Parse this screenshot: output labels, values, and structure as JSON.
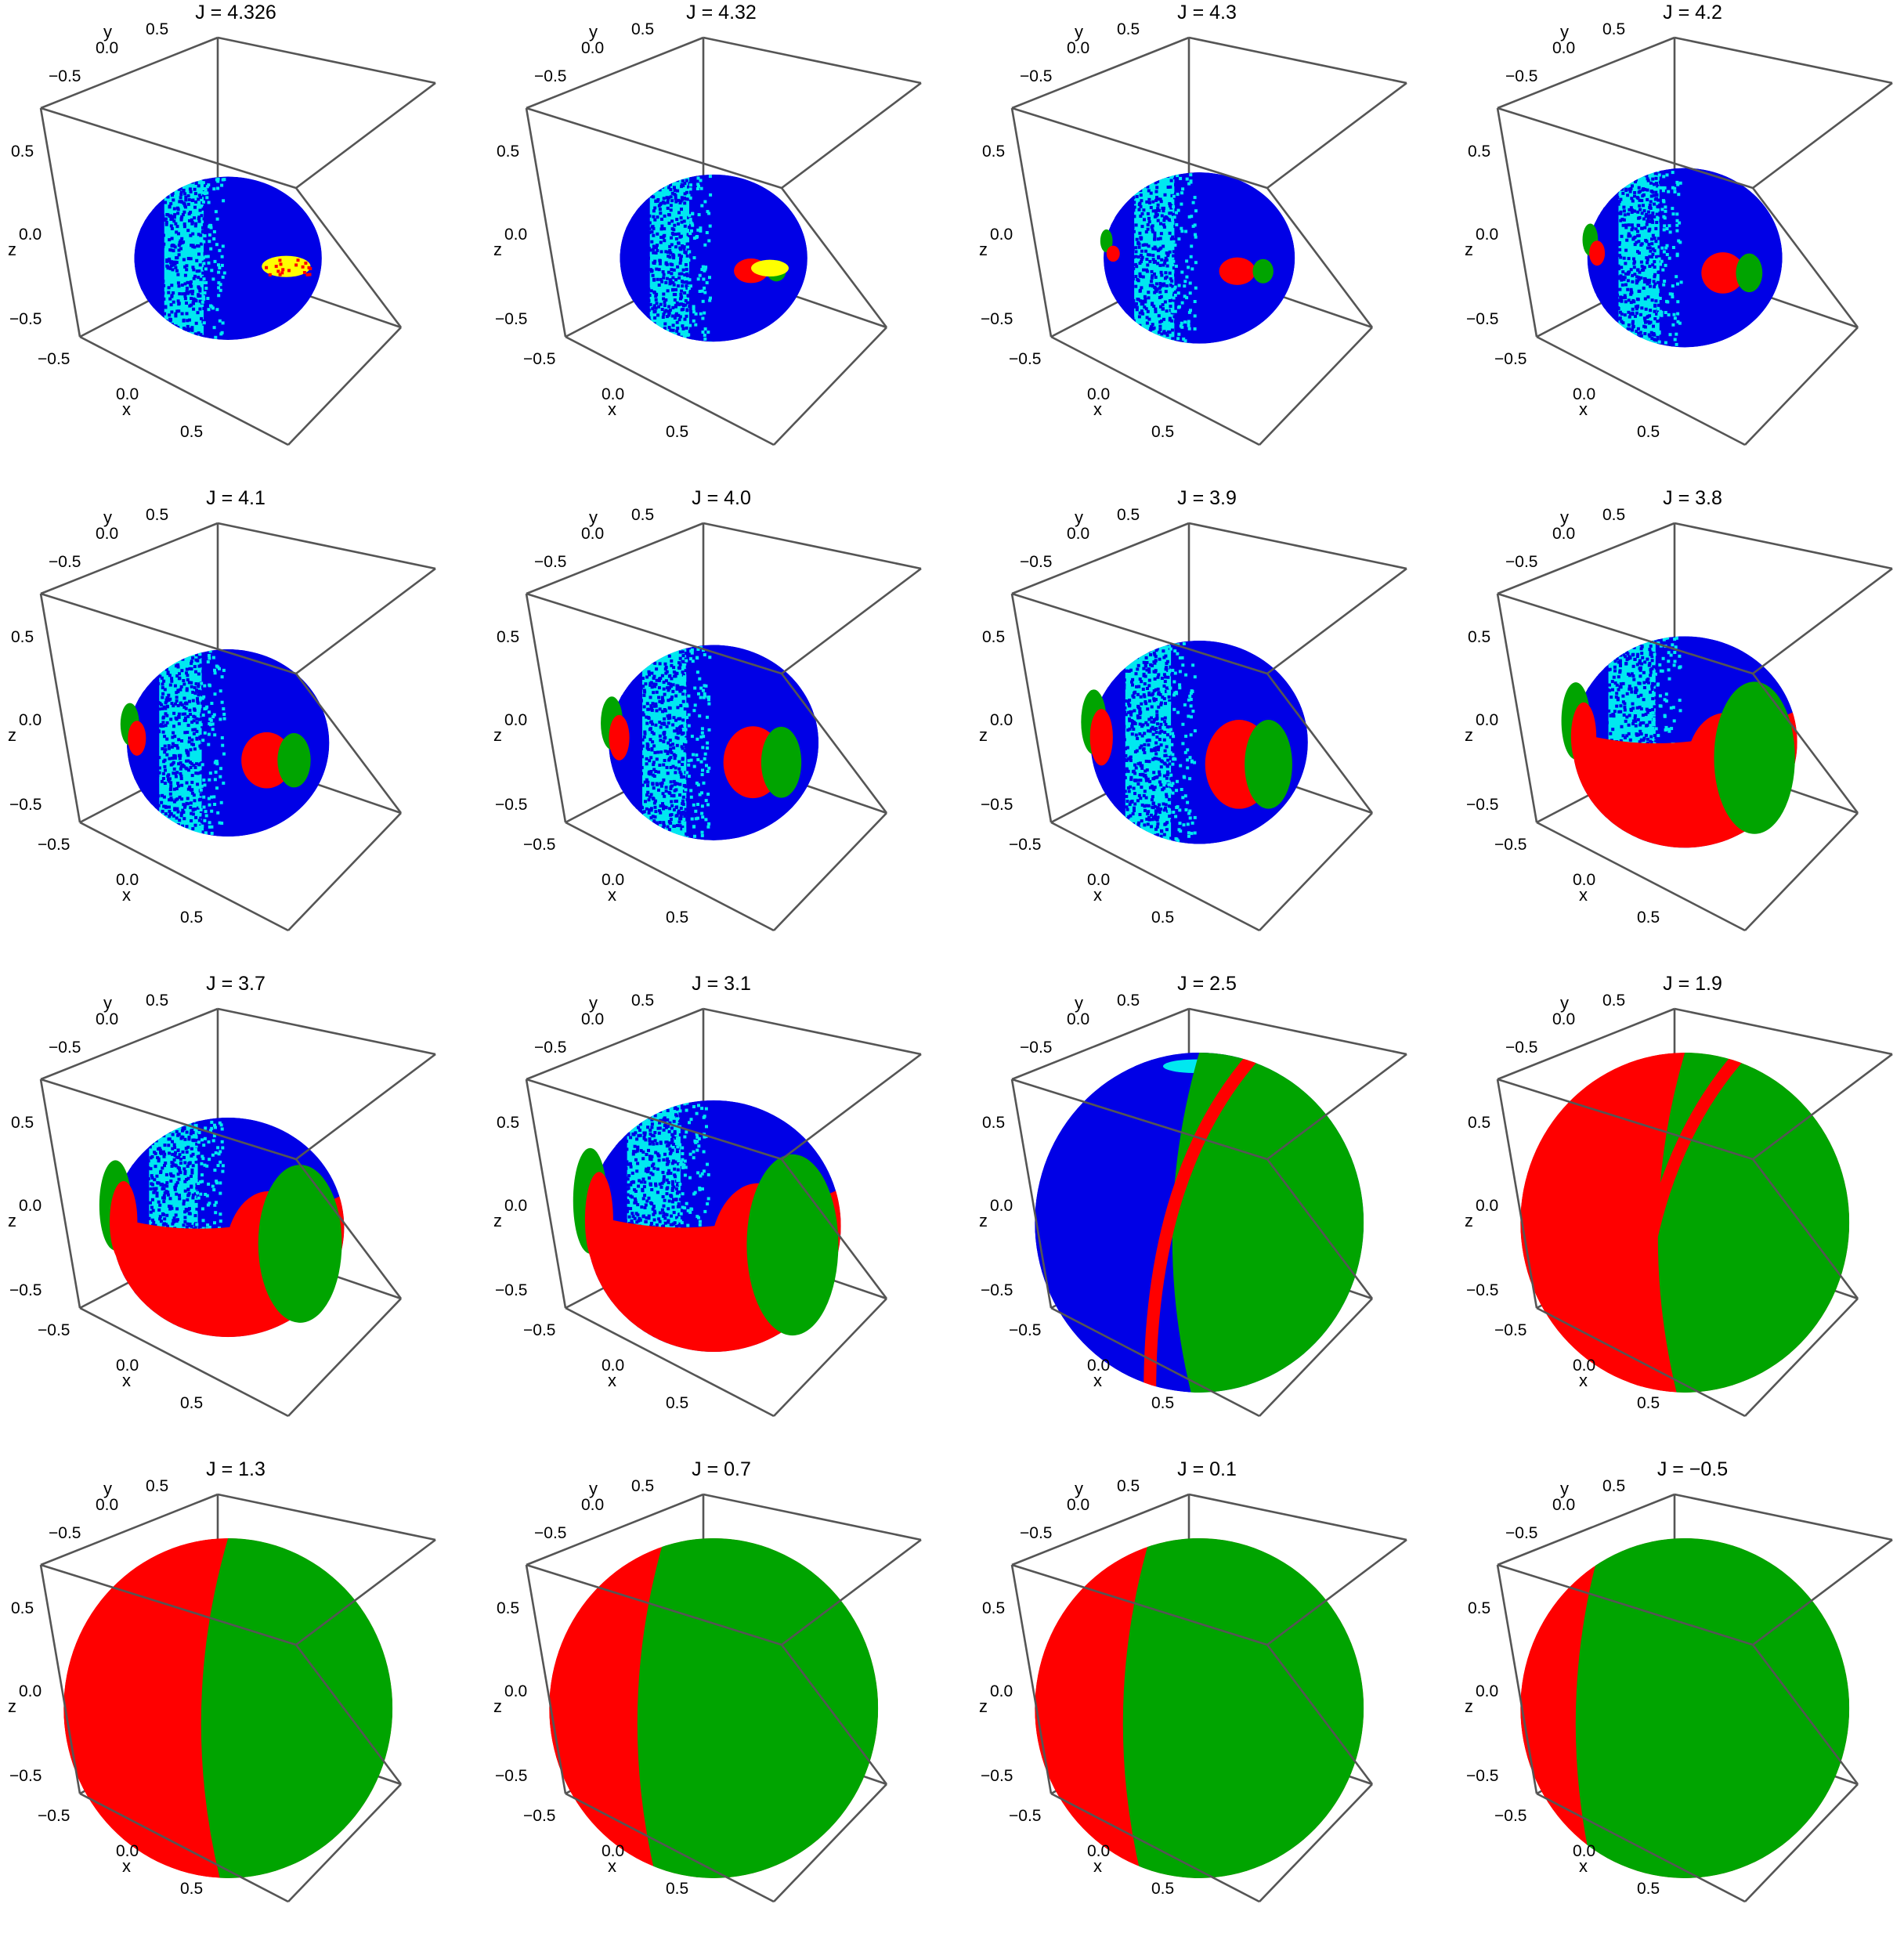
{
  "figure": {
    "panel_title_prefix": "J = ",
    "axis_labels": {
      "x": "x",
      "y": "y",
      "z": "z"
    },
    "colors": {
      "blue": "#0000e6",
      "cyan": "#00e8f0",
      "red": "#ff0000",
      "green": "#00a400",
      "yellow": "#ffff00",
      "frame": "#555555"
    }
  },
  "chart_data": [
    {
      "type": "scatter",
      "title": "J = 4.326",
      "J": 4.326,
      "xlabel": "x",
      "ylabel": "y",
      "zlabel": "z",
      "xticks": [
        "−0.5",
        "0.0",
        "0.5"
      ],
      "yticks": [
        "−0.5",
        "0.0",
        "0.5"
      ],
      "zticks": [
        "−0.5",
        "0.0",
        "0.5"
      ],
      "xlim": [
        -0.8,
        0.8
      ],
      "ylim": [
        -0.8,
        0.8
      ],
      "zlim": [
        -0.8,
        0.8
      ],
      "shape": "ellipsoid",
      "radii": [
        0.62,
        0.42,
        0.36
      ],
      "regions_visible": [
        "blue",
        "cyan",
        "yellow",
        "red"
      ]
    },
    {
      "type": "scatter",
      "title": "J = 4.32",
      "J": 4.32,
      "xlabel": "x",
      "ylabel": "y",
      "zlabel": "z",
      "xticks": [
        "−0.5",
        "0.0",
        "0.5"
      ],
      "yticks": [
        "−0.5",
        "0.0",
        "0.5"
      ],
      "zticks": [
        "−0.5",
        "0.0",
        "0.5"
      ],
      "xlim": [
        -0.8,
        0.8
      ],
      "ylim": [
        -0.8,
        0.8
      ],
      "zlim": [
        -0.8,
        0.8
      ],
      "shape": "ellipsoid",
      "radii": [
        0.64,
        0.42,
        0.37
      ],
      "regions_visible": [
        "blue",
        "cyan",
        "red",
        "yellow",
        "green"
      ]
    },
    {
      "type": "scatter",
      "title": "J = 4.3",
      "J": 4.3,
      "xlabel": "x",
      "ylabel": "y",
      "zlabel": "z",
      "xticks": [
        "−0.5",
        "0.0",
        "0.5"
      ],
      "yticks": [
        "−0.5",
        "0.0",
        "0.5"
      ],
      "zticks": [
        "−0.5",
        "0.0",
        "0.5"
      ],
      "xlim": [
        -0.8,
        0.8
      ],
      "ylim": [
        -0.8,
        0.8
      ],
      "zlim": [
        -0.8,
        0.8
      ],
      "shape": "ellipsoid",
      "radii": [
        0.66,
        0.43,
        0.38
      ],
      "regions_visible": [
        "blue",
        "cyan",
        "red",
        "green"
      ]
    },
    {
      "type": "scatter",
      "title": "J = 4.2",
      "J": 4.2,
      "xlabel": "x",
      "ylabel": "y",
      "zlabel": "z",
      "xticks": [
        "−0.5",
        "0.0",
        "0.5"
      ],
      "yticks": [
        "−0.5",
        "0.0",
        "0.5"
      ],
      "zticks": [
        "−0.5",
        "0.0",
        "0.5"
      ],
      "xlim": [
        -0.8,
        0.8
      ],
      "ylim": [
        -0.8,
        0.8
      ],
      "zlim": [
        -0.8,
        0.8
      ],
      "shape": "ellipsoid",
      "radii": [
        0.7,
        0.44,
        0.4
      ],
      "regions_visible": [
        "blue",
        "cyan",
        "red",
        "green"
      ]
    },
    {
      "type": "scatter",
      "title": "J = 4.1",
      "J": 4.1,
      "xlabel": "x",
      "ylabel": "y",
      "zlabel": "z",
      "xticks": [
        "−0.5",
        "0.0",
        "0.5"
      ],
      "yticks": [
        "−0.5",
        "0.0",
        "0.5"
      ],
      "zticks": [
        "−0.5",
        "0.0",
        "0.5"
      ],
      "xlim": [
        -0.8,
        0.8
      ],
      "ylim": [
        -0.8,
        0.8
      ],
      "zlim": [
        -0.8,
        0.8
      ],
      "shape": "ellipsoid",
      "radii": [
        0.72,
        0.46,
        0.42
      ],
      "regions_visible": [
        "blue",
        "cyan",
        "red",
        "green"
      ]
    },
    {
      "type": "scatter",
      "title": "J = 4.0",
      "J": 4.0,
      "xlabel": "x",
      "ylabel": "y",
      "zlabel": "z",
      "xticks": [
        "−0.5",
        "0.0",
        "0.5"
      ],
      "yticks": [
        "−0.5",
        "0.0",
        "0.5"
      ],
      "zticks": [
        "−0.5",
        "0.0",
        "0.5"
      ],
      "xlim": [
        -0.8,
        0.8
      ],
      "ylim": [
        -0.8,
        0.8
      ],
      "zlim": [
        -0.8,
        0.8
      ],
      "shape": "ellipsoid",
      "radii": [
        0.74,
        0.48,
        0.44
      ],
      "regions_visible": [
        "blue",
        "cyan",
        "red",
        "green"
      ]
    },
    {
      "type": "scatter",
      "title": "J = 3.9",
      "J": 3.9,
      "xlabel": "x",
      "ylabel": "y",
      "zlabel": "z",
      "xticks": [
        "−0.5",
        "0.0",
        "0.5"
      ],
      "yticks": [
        "−0.5",
        "0.0",
        "0.5"
      ],
      "zticks": [
        "−0.5",
        "0.0",
        "0.5"
      ],
      "xlim": [
        -0.8,
        0.8
      ],
      "ylim": [
        -0.8,
        0.8
      ],
      "zlim": [
        -0.8,
        0.8
      ],
      "shape": "ellipsoid",
      "radii": [
        0.76,
        0.5,
        0.46
      ],
      "regions_visible": [
        "blue",
        "cyan",
        "red",
        "green"
      ]
    },
    {
      "type": "scatter",
      "title": "J = 3.8",
      "J": 3.8,
      "xlabel": "x",
      "ylabel": "y",
      "zlabel": "z",
      "xticks": [
        "−0.5",
        "0.0",
        "0.5"
      ],
      "yticks": [
        "−0.5",
        "0.0",
        "0.5"
      ],
      "zticks": [
        "−0.5",
        "0.0",
        "0.5"
      ],
      "xlim": [
        -0.8,
        0.8
      ],
      "ylim": [
        -0.8,
        0.8
      ],
      "zlim": [
        -0.8,
        0.8
      ],
      "shape": "ellipsoid",
      "radii": [
        0.77,
        0.52,
        0.48
      ],
      "regions_visible": [
        "blue",
        "cyan",
        "red",
        "green"
      ]
    },
    {
      "type": "scatter",
      "title": "J = 3.7",
      "J": 3.7,
      "xlabel": "x",
      "ylabel": "y",
      "zlabel": "z",
      "xticks": [
        "−0.5",
        "0.0",
        "0.5"
      ],
      "yticks": [
        "−0.5",
        "0.0",
        "0.5"
      ],
      "zticks": [
        "−0.5",
        "0.0",
        "0.5"
      ],
      "xlim": [
        -0.8,
        0.8
      ],
      "ylim": [
        -0.8,
        0.8
      ],
      "zlim": [
        -0.8,
        0.8
      ],
      "shape": "ellipsoid",
      "radii": [
        0.78,
        0.54,
        0.5
      ],
      "regions_visible": [
        "blue",
        "cyan",
        "red",
        "green"
      ]
    },
    {
      "type": "scatter",
      "title": "J = 3.1",
      "J": 3.1,
      "xlabel": "x",
      "ylabel": "y",
      "zlabel": "z",
      "xticks": [
        "−0.5",
        "0.0",
        "0.5"
      ],
      "yticks": [
        "−0.5",
        "0.0",
        "0.5"
      ],
      "zticks": [
        "−0.5",
        "0.0",
        "0.5"
      ],
      "xlim": [
        -0.8,
        0.8
      ],
      "ylim": [
        -0.8,
        0.8
      ],
      "zlim": [
        -0.8,
        0.8
      ],
      "shape": "ellipsoid",
      "radii": [
        0.8,
        0.6,
        0.58
      ],
      "regions_visible": [
        "blue",
        "cyan",
        "red",
        "green"
      ]
    },
    {
      "type": "scatter",
      "title": "J = 2.5",
      "J": 2.5,
      "xlabel": "x",
      "ylabel": "y",
      "zlabel": "z",
      "xticks": [
        "−0.5",
        "0.0",
        "0.5"
      ],
      "yticks": [
        "−0.5",
        "0.0",
        "0.5"
      ],
      "zticks": [
        "−0.5",
        "0.0",
        "0.5"
      ],
      "xlim": [
        -0.8,
        0.8
      ],
      "ylim": [
        -0.8,
        0.8
      ],
      "zlim": [
        -0.8,
        0.8
      ],
      "shape": "sphere",
      "radii": [
        0.8,
        0.8,
        0.8
      ],
      "regions_visible": [
        "red",
        "green",
        "blue",
        "cyan"
      ]
    },
    {
      "type": "scatter",
      "title": "J = 1.9",
      "J": 1.9,
      "xlabel": "x",
      "ylabel": "y",
      "zlabel": "z",
      "xticks": [
        "−0.5",
        "0.0",
        "0.5"
      ],
      "yticks": [
        "−0.5",
        "0.0",
        "0.5"
      ],
      "zticks": [
        "−0.5",
        "0.0",
        "0.5"
      ],
      "xlim": [
        -0.8,
        0.8
      ],
      "ylim": [
        -0.8,
        0.8
      ],
      "zlim": [
        -0.8,
        0.8
      ],
      "shape": "sphere",
      "radii": [
        0.8,
        0.8,
        0.8
      ],
      "regions_visible": [
        "red",
        "green"
      ]
    },
    {
      "type": "scatter",
      "title": "J = 1.3",
      "J": 1.3,
      "xlabel": "x",
      "ylabel": "y",
      "zlabel": "z",
      "xticks": [
        "−0.5",
        "0.0",
        "0.5"
      ],
      "yticks": [
        "−0.5",
        "0.0",
        "0.5"
      ],
      "zticks": [
        "−0.5",
        "0.0",
        "0.5"
      ],
      "xlim": [
        -0.8,
        0.8
      ],
      "ylim": [
        -0.8,
        0.8
      ],
      "zlim": [
        -0.8,
        0.8
      ],
      "shape": "sphere",
      "radii": [
        0.8,
        0.8,
        0.8
      ],
      "regions_visible": [
        "red",
        "green"
      ]
    },
    {
      "type": "scatter",
      "title": "J = 0.7",
      "J": 0.7,
      "xlabel": "x",
      "ylabel": "y",
      "zlabel": "z",
      "xticks": [
        "−0.5",
        "0.0",
        "0.5"
      ],
      "yticks": [
        "−0.5",
        "0.0",
        "0.5"
      ],
      "zticks": [
        "−0.5",
        "0.0",
        "0.5"
      ],
      "xlim": [
        -0.8,
        0.8
      ],
      "ylim": [
        -0.8,
        0.8
      ],
      "zlim": [
        -0.8,
        0.8
      ],
      "shape": "sphere",
      "radii": [
        0.8,
        0.8,
        0.8
      ],
      "regions_visible": [
        "red",
        "green"
      ]
    },
    {
      "type": "scatter",
      "title": "J = 0.1",
      "J": 0.1,
      "xlabel": "x",
      "ylabel": "y",
      "zlabel": "z",
      "xticks": [
        "−0.5",
        "0.0",
        "0.5"
      ],
      "yticks": [
        "−0.5",
        "0.0",
        "0.5"
      ],
      "zticks": [
        "−0.5",
        "0.0",
        "0.5"
      ],
      "xlim": [
        -0.8,
        0.8
      ],
      "ylim": [
        -0.8,
        0.8
      ],
      "zlim": [
        -0.8,
        0.8
      ],
      "shape": "sphere",
      "radii": [
        0.8,
        0.8,
        0.8
      ],
      "regions_visible": [
        "red",
        "green"
      ]
    },
    {
      "type": "scatter",
      "title": "J = −0.5",
      "J": -0.5,
      "xlabel": "x",
      "ylabel": "y",
      "zlabel": "z",
      "xticks": [
        "−0.5",
        "0.0",
        "0.5"
      ],
      "yticks": [
        "−0.5",
        "0.0",
        "0.5"
      ],
      "zticks": [
        "−0.5",
        "0.0",
        "0.5"
      ],
      "xlim": [
        -0.8,
        0.8
      ],
      "ylim": [
        -0.8,
        0.8
      ],
      "zlim": [
        -0.8,
        0.8
      ],
      "shape": "sphere",
      "radii": [
        0.8,
        0.8,
        0.8
      ],
      "regions_visible": [
        "red",
        "green"
      ]
    }
  ]
}
